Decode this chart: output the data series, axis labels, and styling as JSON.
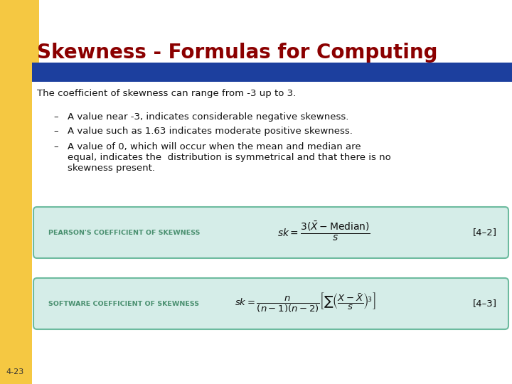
{
  "title": "Skewness - Formulas for Computing",
  "title_color": "#8B0000",
  "title_fontsize": 20,
  "blue_bar_color": "#1C3F9E",
  "bg_color": "#FFFFFF",
  "left_accent_color": "#F5C842",
  "body_text_intro": "The coefficient of skewness can range from -3 up to 3.",
  "bullet1": "A value near -3, indicates considerable negative skewness.",
  "bullet2": "A value such as 1.63 indicates moderate positive skewness.",
  "bullet3a": "A value of 0, which will occur when the mean and median are",
  "bullet3b": "equal, indicates the  distribution is symmetrical and that there is no",
  "bullet3c": "skewness present.",
  "box1_label": "PEARSON'S COEFFICIENT OF SKEWNESS",
  "box1_ref": "[4–2]",
  "box2_label": "SOFTWARE COEFFICIENT OF SKEWNESS",
  "box2_ref": "[4–3]",
  "box_bg_color": "#D5EDE8",
  "box_border_color": "#6DBB9F",
  "box_label_color": "#4A9070",
  "page_number": "4-23",
  "dash": "–"
}
